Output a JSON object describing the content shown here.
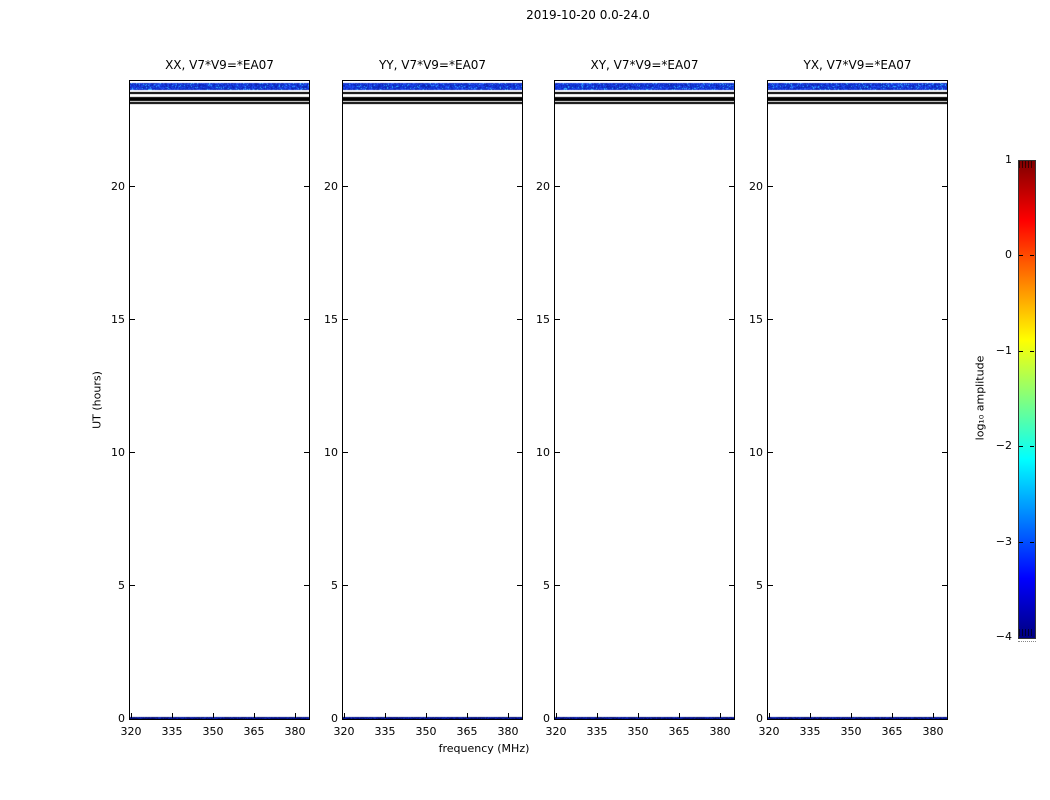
{
  "chart_data": {
    "type": "heatmap",
    "title": "2019-10-20 0.0-24.0",
    "xlabel": "frequency (MHz)",
    "ylabel": "UT (hours)",
    "xlim": [
      319.2,
      385.6
    ],
    "ylim": [
      0,
      24
    ],
    "xticks": [
      320,
      335,
      350,
      365,
      380
    ],
    "xtick_labels": [
      "320",
      "335",
      "350",
      "365",
      "380"
    ],
    "yticks": [
      0,
      5,
      10,
      15,
      20
    ],
    "ytick_labels": [
      "0",
      "5",
      "10",
      "15",
      "20"
    ],
    "grid": false,
    "panels": [
      {
        "polarization": "XX",
        "title": "XX, V7*V9=*EA07"
      },
      {
        "polarization": "YY",
        "title": "YY, V7*V9=*EA07"
      },
      {
        "polarization": "XY",
        "title": "XY, V7*V9=*EA07"
      },
      {
        "polarization": "YX",
        "title": "YX, V7*V9=*EA07"
      }
    ],
    "features": {
      "description": "Dynamic spectra, mostly blank/white. A noisy blue band (log10 amplitude ~ -3) spans all frequencies near 23.7-23.9 UT, with three black flagged rows just below it, and a faint dark-blue data row at 0 UT in every panel.",
      "bands": [
        {
          "t0": 23.66,
          "t1": 23.94,
          "style": "noise_blue"
        },
        {
          "t0": 23.52,
          "t1": 23.59,
          "style": "black"
        },
        {
          "t0": 23.26,
          "t1": 23.38,
          "style": "black"
        },
        {
          "t0": 23.14,
          "t1": 23.2,
          "style": "black"
        },
        {
          "t0": 0.0,
          "t1": 0.08,
          "style": "noise_darkblue"
        }
      ]
    },
    "noise_palettes": {
      "noise_blue": [
        "#0b2fd0",
        "#1133d6",
        "#0a1fb0",
        "#1e47ee",
        "#2a58ff",
        "#0d2cc0",
        "#123bda",
        "#0920a6",
        "#1240e0",
        "#0b2fd0",
        "#1133d6",
        "#33bbff",
        "#1e47ee",
        "#0a1fb0",
        "#2050f5",
        "#0d2cc0"
      ],
      "noise_darkblue": [
        "#000880",
        "#001095",
        "#04189f",
        "#020f75",
        "#0a20aa",
        "#000a6a"
      ]
    },
    "colorbar": {
      "label": "log₁₀ amplitude",
      "colormap": "jet",
      "vmin": -4,
      "vmax": 1,
      "tick_values": [
        1,
        0,
        -1,
        -2,
        -3,
        -4
      ],
      "tick_labels": [
        "1",
        "0",
        "−1",
        "−2",
        "−3",
        "−4"
      ],
      "stops": [
        [
          "#800000",
          0
        ],
        [
          "#ff0000",
          12.5
        ],
        [
          "#ffff00",
          37.5
        ],
        [
          "#80ff80",
          50
        ],
        [
          "#00ffff",
          62.5
        ],
        [
          "#0000ff",
          87.5
        ],
        [
          "#000080",
          100
        ]
      ]
    }
  }
}
